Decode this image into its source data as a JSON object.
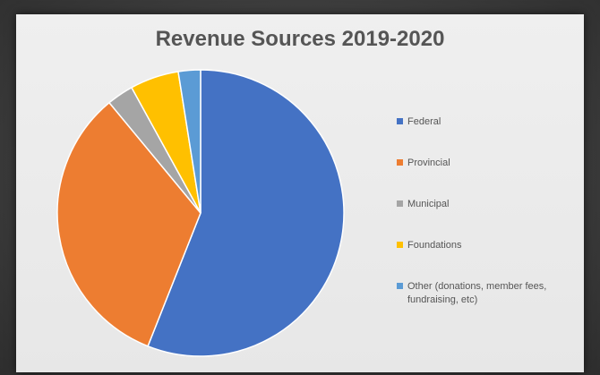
{
  "chart_data": {
    "type": "pie",
    "title": "Revenue Sources 2019-2020",
    "legend_position": "right",
    "slices": [
      {
        "label": "Federal",
        "value": 56.0,
        "color": "#4472C4"
      },
      {
        "label": "Provincial",
        "value": 33.0,
        "color": "#ED7D31"
      },
      {
        "label": "Municipal",
        "value": 3.0,
        "color": "#A5A5A5"
      },
      {
        "label": "Foundations",
        "value": 5.5,
        "color": "#FFC000"
      },
      {
        "label": "Other (donations, member fees, fundraising, etc)",
        "value": 2.5,
        "color": "#5B9BD5"
      }
    ]
  }
}
